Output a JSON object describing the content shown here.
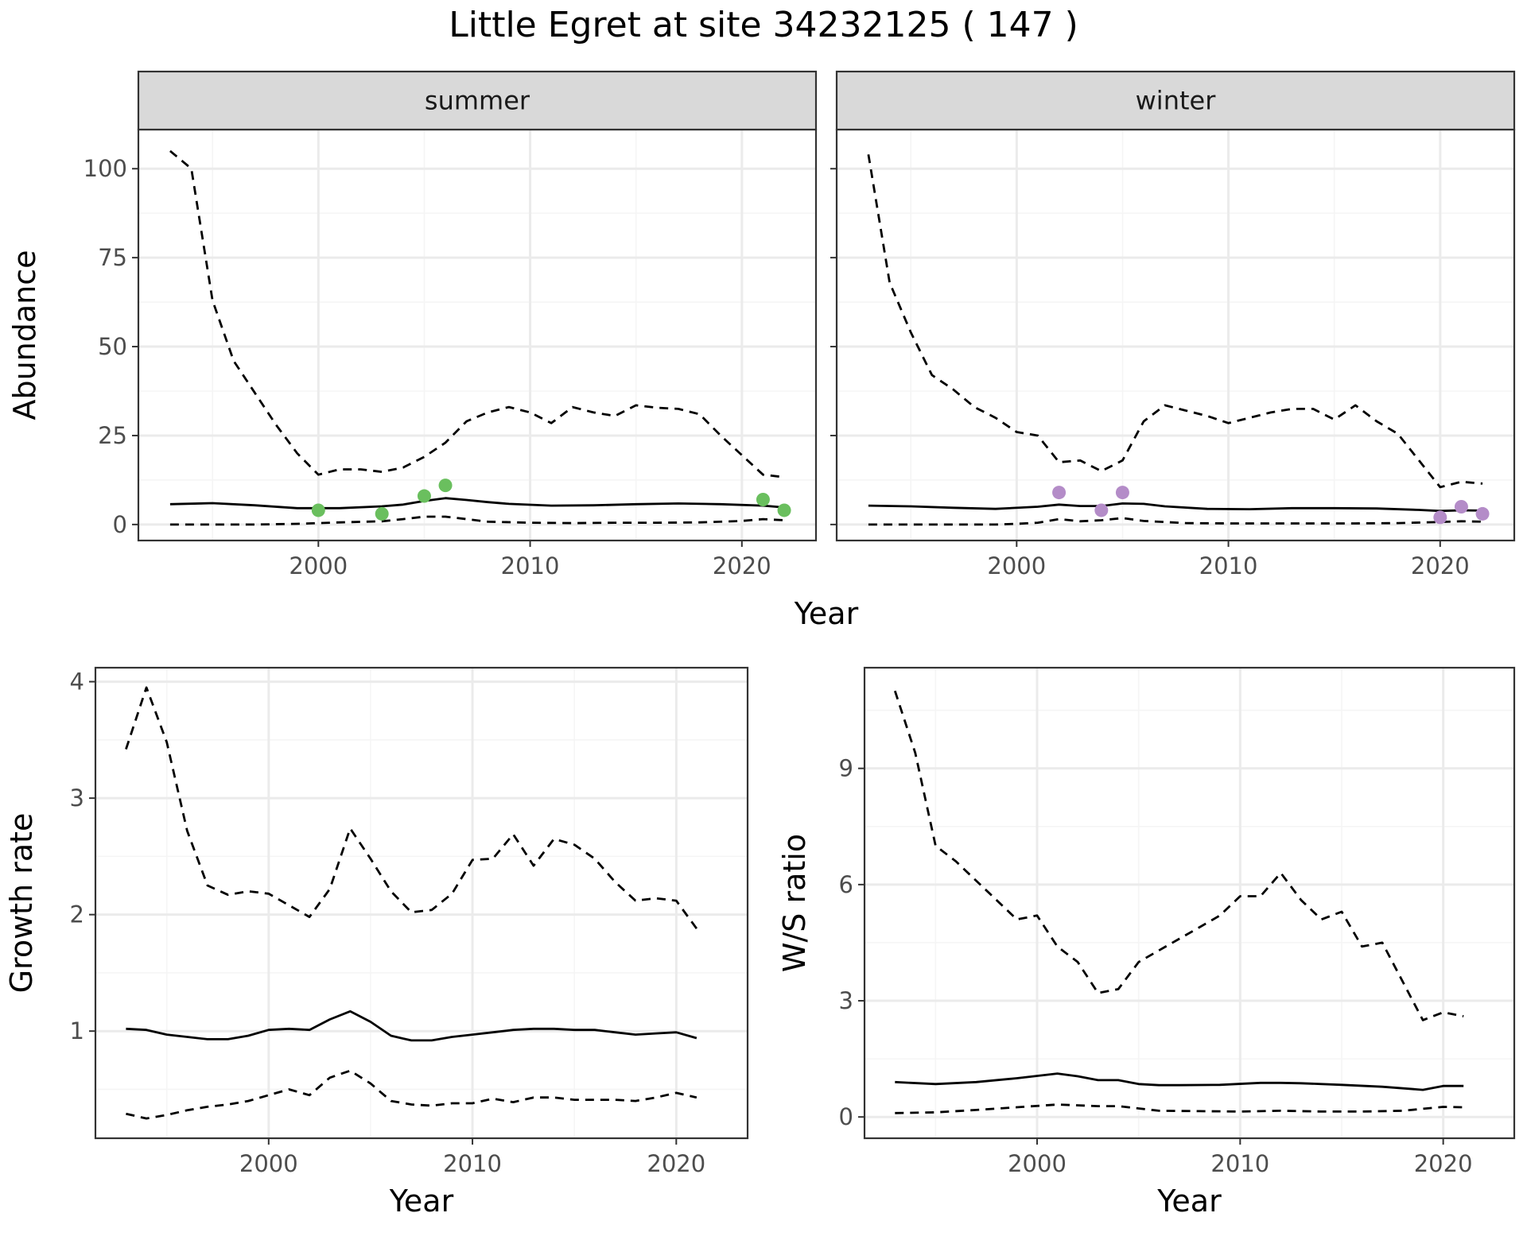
{
  "title": "Little Egret at site 34232125 ( 147 )",
  "colors": {
    "summer_points": "#6abf5e",
    "winter_points": "#b48cc8",
    "line": "#000000",
    "grid_major": "#ebebeb",
    "grid_minor": "#f5f5f5",
    "strip_fill": "#d9d9d9"
  },
  "chart_data": [
    {
      "type": "line",
      "facet": "summer",
      "strip_label": "summer",
      "xlabel": "Year",
      "ylabel": "Abundance",
      "xlim": [
        1991.5,
        2023.5
      ],
      "ylim": [
        -4.5,
        111
      ],
      "xticks": [
        2000,
        2010,
        2020
      ],
      "yticks": [
        0,
        25,
        50,
        75,
        100
      ],
      "grid": true,
      "series": [
        {
          "role": "estimate",
          "style": "solid",
          "x": [
            1993,
            1995,
            1997,
            1999,
            2001,
            2003,
            2004,
            2005,
            2006,
            2007,
            2008,
            2009,
            2011,
            2013,
            2015,
            2017,
            2019,
            2021,
            2022
          ],
          "y": [
            5.7,
            6.0,
            5.4,
            4.6,
            4.6,
            5.1,
            5.6,
            6.6,
            7.4,
            6.9,
            6.3,
            5.8,
            5.3,
            5.4,
            5.7,
            5.9,
            5.7,
            5.3,
            4.8
          ]
        },
        {
          "role": "upper",
          "style": "dashed",
          "x": [
            1993,
            1994,
            1995,
            1996,
            1997,
            1998,
            1999,
            2000,
            2001,
            2002,
            2003,
            2004,
            2005,
            2006,
            2007,
            2008,
            2009,
            2010,
            2011,
            2012,
            2013,
            2014,
            2015,
            2016,
            2017,
            2018,
            2019,
            2020,
            2021,
            2022
          ],
          "y": [
            105,
            100,
            63,
            46,
            37,
            28,
            20,
            14,
            15.5,
            15.5,
            14.8,
            16,
            19,
            23,
            29,
            31.5,
            33,
            31.5,
            28.5,
            33,
            31.5,
            30.5,
            33.5,
            32.8,
            32.5,
            31,
            25,
            19.5,
            14,
            13.3
          ]
        },
        {
          "role": "lower",
          "style": "dashed",
          "x": [
            1993,
            1995,
            1997,
            1999,
            2001,
            2003,
            2004,
            2005,
            2006,
            2007,
            2008,
            2010,
            2012,
            2014,
            2016,
            2018,
            2020,
            2021,
            2022
          ],
          "y": [
            0,
            0,
            0,
            0.2,
            0.6,
            0.9,
            1.5,
            2.2,
            2.2,
            1.5,
            0.8,
            0.5,
            0.4,
            0.5,
            0.5,
            0.6,
            1.0,
            1.5,
            1.2
          ]
        }
      ],
      "points": {
        "x": [
          2000,
          2003,
          2005,
          2006,
          2021,
          2022
        ],
        "y": [
          4,
          3,
          8,
          11,
          7,
          4
        ]
      }
    },
    {
      "type": "line",
      "facet": "winter",
      "strip_label": "winter",
      "xlabel": "Year",
      "ylabel": "Abundance",
      "xlim": [
        1991.5,
        2023.5
      ],
      "ylim": [
        -4.5,
        111
      ],
      "xticks": [
        2000,
        2010,
        2020
      ],
      "yticks": [
        0,
        25,
        50,
        75,
        100
      ],
      "grid": true,
      "series": [
        {
          "role": "estimate",
          "style": "solid",
          "x": [
            1993,
            1995,
            1997,
            1999,
            2001,
            2002,
            2003,
            2004,
            2005,
            2006,
            2007,
            2009,
            2011,
            2013,
            2015,
            2017,
            2019,
            2020,
            2021,
            2022
          ],
          "y": [
            5.3,
            5.1,
            4.7,
            4.4,
            5.0,
            5.6,
            5.2,
            5.2,
            5.9,
            5.8,
            5.1,
            4.4,
            4.3,
            4.6,
            4.6,
            4.5,
            4.1,
            3.8,
            4.0,
            3.9
          ]
        },
        {
          "role": "upper",
          "style": "dashed",
          "x": [
            1993,
            1994,
            1995,
            1996,
            1997,
            1998,
            1999,
            2000,
            2001,
            2002,
            2003,
            2004,
            2005,
            2006,
            2007,
            2008,
            2009,
            2010,
            2011,
            2012,
            2013,
            2014,
            2015,
            2016,
            2017,
            2018,
            2019,
            2020,
            2021,
            2022
          ],
          "y": [
            104,
            68,
            54,
            42,
            38,
            33,
            30,
            26,
            25,
            17.5,
            18,
            15,
            18,
            29,
            33.5,
            32,
            30.5,
            28.5,
            30,
            31.5,
            32.5,
            32.5,
            29.5,
            33.5,
            29,
            25.5,
            18,
            10.5,
            12,
            11.5
          ]
        },
        {
          "role": "lower",
          "style": "dashed",
          "x": [
            1993,
            1995,
            1997,
            1999,
            2000,
            2001,
            2002,
            2003,
            2004,
            2005,
            2006,
            2008,
            2010,
            2012,
            2014,
            2016,
            2018,
            2020,
            2021,
            2022
          ],
          "y": [
            0,
            0,
            0,
            0,
            0.2,
            0.5,
            1.5,
            0.9,
            1.2,
            1.8,
            1.0,
            0.4,
            0.3,
            0.3,
            0.3,
            0.3,
            0.4,
            0.7,
            0.9,
            0.8
          ]
        }
      ],
      "points": {
        "x": [
          2002,
          2004,
          2005,
          2020,
          2021,
          2022
        ],
        "y": [
          9,
          4,
          9,
          2,
          5,
          3
        ]
      }
    },
    {
      "type": "line",
      "facet": "growth",
      "xlabel": "Year",
      "ylabel": "Growth rate",
      "xlim": [
        1991.5,
        2023.5
      ],
      "ylim": [
        0.08,
        4.12
      ],
      "xticks": [
        2000,
        2010,
        2020
      ],
      "yticks": [
        1,
        2,
        3,
        4
      ],
      "grid": true,
      "series": [
        {
          "role": "estimate",
          "style": "solid",
          "x": [
            1993,
            1994,
            1995,
            1996,
            1997,
            1998,
            1999,
            2000,
            2001,
            2002,
            2003,
            2004,
            2005,
            2006,
            2007,
            2008,
            2009,
            2010,
            2011,
            2012,
            2013,
            2014,
            2015,
            2016,
            2017,
            2018,
            2019,
            2020,
            2021
          ],
          "y": [
            1.02,
            1.01,
            0.97,
            0.95,
            0.93,
            0.93,
            0.96,
            1.01,
            1.02,
            1.01,
            1.1,
            1.17,
            1.08,
            0.96,
            0.92,
            0.92,
            0.95,
            0.97,
            0.99,
            1.01,
            1.02,
            1.02,
            1.01,
            1.01,
            0.99,
            0.97,
            0.98,
            0.99,
            0.94
          ]
        },
        {
          "role": "upper",
          "style": "dashed",
          "x": [
            1993,
            1994,
            1995,
            1996,
            1997,
            1998,
            1999,
            2000,
            2001,
            2002,
            2003,
            2004,
            2005,
            2006,
            2007,
            2008,
            2009,
            2010,
            2011,
            2012,
            2013,
            2014,
            2015,
            2016,
            2017,
            2018,
            2019,
            2020,
            2021
          ],
          "y": [
            3.42,
            3.95,
            3.48,
            2.72,
            2.25,
            2.17,
            2.2,
            2.18,
            2.08,
            1.98,
            2.22,
            2.74,
            2.48,
            2.2,
            2.02,
            2.04,
            2.18,
            2.47,
            2.48,
            2.69,
            2.42,
            2.65,
            2.6,
            2.48,
            2.28,
            2.12,
            2.14,
            2.12,
            1.88
          ]
        },
        {
          "role": "lower",
          "style": "dashed",
          "x": [
            1993,
            1994,
            1995,
            1996,
            1997,
            1998,
            1999,
            2000,
            2001,
            2002,
            2003,
            2004,
            2005,
            2006,
            2007,
            2008,
            2009,
            2010,
            2011,
            2012,
            2013,
            2014,
            2015,
            2016,
            2017,
            2018,
            2019,
            2020,
            2021
          ],
          "y": [
            0.29,
            0.25,
            0.28,
            0.32,
            0.35,
            0.37,
            0.4,
            0.45,
            0.5,
            0.45,
            0.6,
            0.66,
            0.55,
            0.4,
            0.37,
            0.36,
            0.38,
            0.38,
            0.42,
            0.39,
            0.43,
            0.43,
            0.41,
            0.41,
            0.41,
            0.4,
            0.43,
            0.47,
            0.43
          ]
        }
      ]
    },
    {
      "type": "line",
      "facet": "ratio",
      "xlabel": "Year",
      "ylabel": "W/S ratio",
      "xlim": [
        1991.5,
        2023.5
      ],
      "ylim": [
        -0.55,
        11.6
      ],
      "xticks": [
        2000,
        2010,
        2020
      ],
      "yticks": [
        0,
        3,
        6,
        9
      ],
      "grid": true,
      "series": [
        {
          "role": "estimate",
          "style": "solid",
          "x": [
            1993,
            1995,
            1997,
            1999,
            2001,
            2002,
            2003,
            2004,
            2005,
            2006,
            2007,
            2009,
            2011,
            2012,
            2013,
            2015,
            2017,
            2019,
            2020,
            2021
          ],
          "y": [
            0.9,
            0.85,
            0.9,
            1.0,
            1.12,
            1.05,
            0.95,
            0.95,
            0.85,
            0.82,
            0.82,
            0.83,
            0.88,
            0.88,
            0.87,
            0.83,
            0.78,
            0.7,
            0.8,
            0.8
          ]
        },
        {
          "role": "upper",
          "style": "dashed",
          "x": [
            1993,
            1994,
            1995,
            1996,
            1997,
            1998,
            1999,
            2000,
            2001,
            2002,
            2003,
            2004,
            2005,
            2006,
            2007,
            2008,
            2009,
            2010,
            2011,
            2012,
            2013,
            2014,
            2015,
            2016,
            2017,
            2018,
            2019,
            2020,
            2021
          ],
          "y": [
            11.0,
            9.4,
            7.0,
            6.6,
            6.1,
            5.6,
            5.1,
            5.2,
            4.4,
            4.0,
            3.2,
            3.3,
            4.0,
            4.3,
            4.6,
            4.9,
            5.2,
            5.7,
            5.7,
            6.3,
            5.6,
            5.1,
            5.3,
            4.4,
            4.5,
            3.5,
            2.5,
            2.7,
            2.6
          ]
        },
        {
          "role": "lower",
          "style": "dashed",
          "x": [
            1993,
            1995,
            1997,
            1999,
            2001,
            2003,
            2004,
            2005,
            2006,
            2008,
            2010,
            2012,
            2014,
            2016,
            2018,
            2020,
            2021
          ],
          "y": [
            0.1,
            0.12,
            0.18,
            0.25,
            0.32,
            0.28,
            0.28,
            0.22,
            0.16,
            0.15,
            0.14,
            0.16,
            0.14,
            0.14,
            0.16,
            0.26,
            0.25
          ]
        }
      ]
    }
  ]
}
